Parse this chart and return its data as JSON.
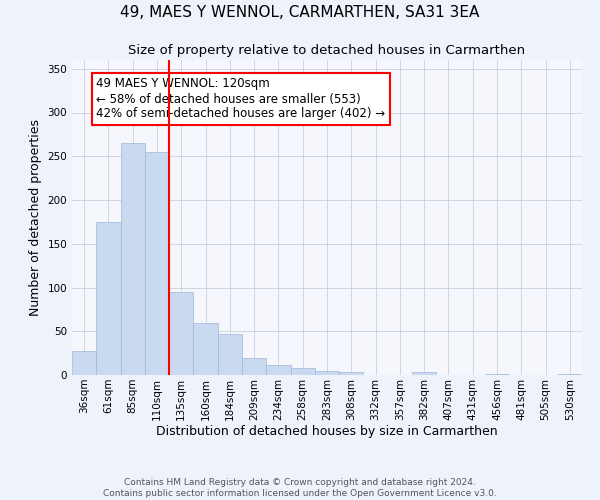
{
  "title": "49, MAES Y WENNOL, CARMARTHEN, SA31 3EA",
  "subtitle": "Size of property relative to detached houses in Carmarthen",
  "xlabel": "Distribution of detached houses by size in Carmarthen",
  "ylabel": "Number of detached properties",
  "bin_labels": [
    "36sqm",
    "61sqm",
    "85sqm",
    "110sqm",
    "135sqm",
    "160sqm",
    "184sqm",
    "209sqm",
    "234sqm",
    "258sqm",
    "283sqm",
    "308sqm",
    "332sqm",
    "357sqm",
    "382sqm",
    "407sqm",
    "431sqm",
    "456sqm",
    "481sqm",
    "505sqm",
    "530sqm"
  ],
  "bar_values": [
    28,
    175,
    265,
    255,
    95,
    60,
    47,
    20,
    11,
    8,
    5,
    4,
    0,
    0,
    3,
    0,
    0,
    1,
    0,
    0,
    1
  ],
  "bar_color": "#c9d9f0",
  "bar_edge_color": "#a0b8d8",
  "vline_x_index": 3.5,
  "vline_color": "red",
  "annotation_text": "49 MAES Y WENNOL: 120sqm\n← 58% of detached houses are smaller (553)\n42% of semi-detached houses are larger (402) →",
  "annotation_box_color": "white",
  "annotation_box_edge_color": "red",
  "ylim": [
    0,
    360
  ],
  "yticks": [
    0,
    50,
    100,
    150,
    200,
    250,
    300,
    350
  ],
  "footer_line1": "Contains HM Land Registry data © Crown copyright and database right 2024.",
  "footer_line2": "Contains public sector information licensed under the Open Government Licence v3.0.",
  "title_fontsize": 11,
  "axis_label_fontsize": 9,
  "tick_fontsize": 7.5,
  "annotation_fontsize": 8.5,
  "footer_fontsize": 6.5,
  "background_color": "#eef2fb",
  "plot_background_color": "#f5f7fd"
}
